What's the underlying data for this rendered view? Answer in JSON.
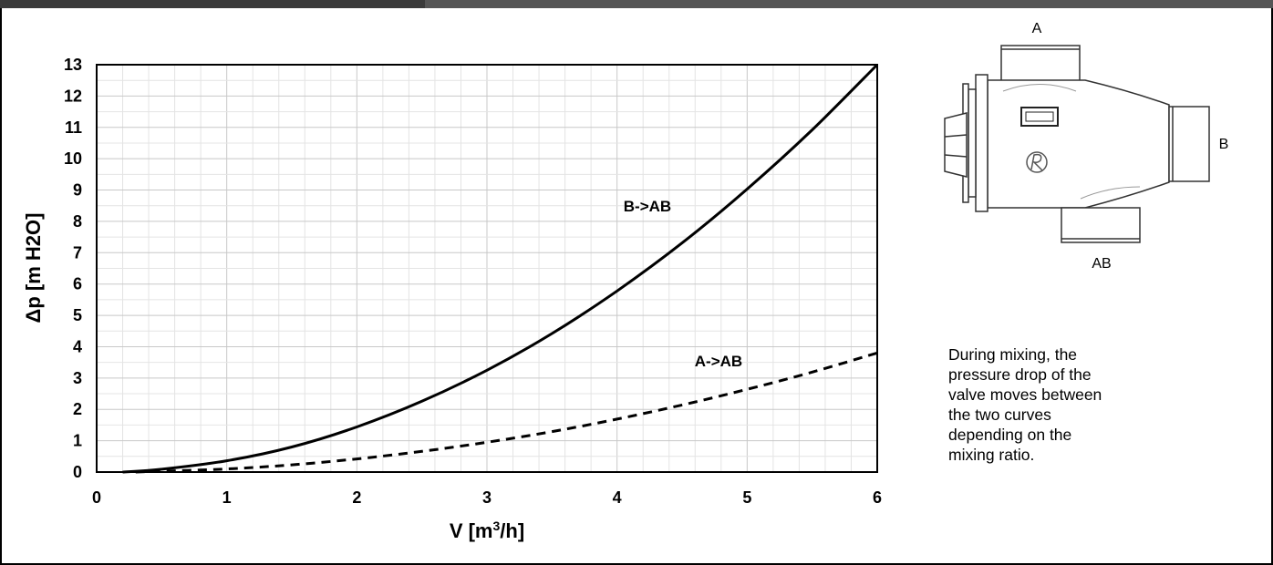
{
  "chart_data": {
    "type": "line",
    "xlabel_main": "V [m",
    "xlabel_sup": "3",
    "xlabel_tail": "/h]",
    "ylabel": "Δp [m H2O]",
    "xlim": [
      0,
      6
    ],
    "ylim": [
      0,
      13
    ],
    "x_ticks": [
      "0",
      "1",
      "2",
      "3",
      "4",
      "5",
      "6"
    ],
    "y_ticks": [
      "0",
      "1",
      "2",
      "3",
      "4",
      "5",
      "6",
      "7",
      "8",
      "9",
      "10",
      "11",
      "12",
      "13"
    ],
    "grid": true,
    "series": [
      {
        "name": "B->AB",
        "style": "solid",
        "color": "#000000",
        "x": [
          0.2,
          0.5,
          1,
          1.5,
          2,
          2.5,
          3,
          3.5,
          4,
          4.5,
          5,
          5.5,
          6
        ],
        "y": [
          0.0,
          0.09,
          0.36,
          0.8,
          1.44,
          2.26,
          3.25,
          4.42,
          5.78,
          7.31,
          9.03,
          10.92,
          13.0
        ]
      },
      {
        "name": "A->AB",
        "style": "dashed",
        "color": "#000000",
        "x": [
          0.3,
          1,
          1.5,
          2,
          2.5,
          3,
          3.5,
          4,
          4.5,
          5,
          5.5,
          6
        ],
        "y": [
          0.0,
          0.1,
          0.23,
          0.42,
          0.66,
          0.95,
          1.29,
          1.69,
          2.14,
          2.64,
          3.19,
          3.8
        ]
      }
    ]
  },
  "diagram": {
    "port_a": "A",
    "port_b": "B",
    "port_ab": "AB"
  },
  "note": "During mixing, the pressure drop of the valve moves between the two curves  depending on the mixing ratio."
}
